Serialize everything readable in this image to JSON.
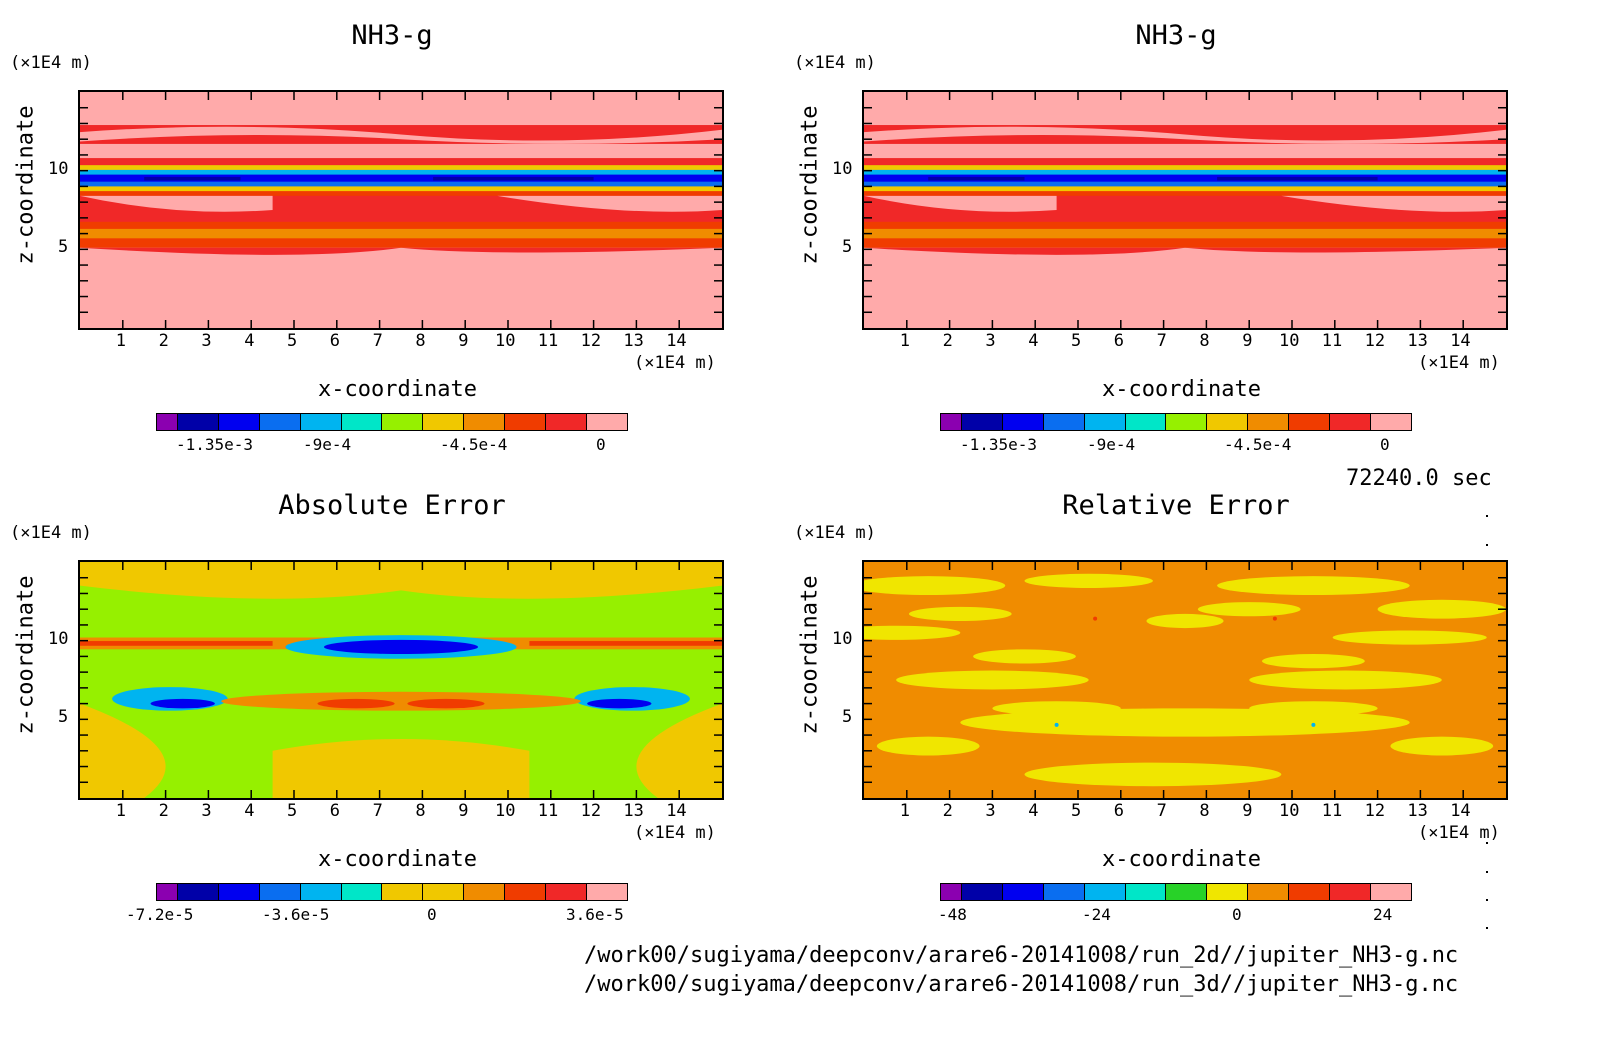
{
  "panels": [
    {
      "title": "NH3-g",
      "z_unit": "(×1E4 m)",
      "x_unit": "(×1E4 m)",
      "xlabel": "x-coordinate",
      "ylabel": "z-coordinate",
      "colorbar_labels": [
        "-1.35e-3",
        "-9e-4",
        "-4.5e-4",
        "0"
      ],
      "colorbar_colors": [
        "#8b00b0",
        "#0000a8",
        "#0000f0",
        "#0a6ef0",
        "#00b4f0",
        "#00e6c8",
        "#96f000",
        "#f0c800",
        "#f08c00",
        "#f03c00",
        "#f02828",
        "#ffaaaa"
      ]
    },
    {
      "title": "NH3-g",
      "z_unit": "(×1E4 m)",
      "x_unit": "(×1E4 m)",
      "xlabel": "x-coordinate",
      "ylabel": "z-coordinate",
      "colorbar_labels": [
        "-1.35e-3",
        "-9e-4",
        "-4.5e-4",
        "0"
      ],
      "colorbar_colors": [
        "#8b00b0",
        "#0000a8",
        "#0000f0",
        "#0a6ef0",
        "#00b4f0",
        "#00e6c8",
        "#96f000",
        "#f0c800",
        "#f08c00",
        "#f03c00",
        "#f02828",
        "#ffaaaa"
      ]
    },
    {
      "title": "Absolute Error",
      "z_unit": "(×1E4 m)",
      "x_unit": "(×1E4 m)",
      "xlabel": "x-coordinate",
      "ylabel": "z-coordinate",
      "colorbar_labels": [
        "-7.2e-5",
        "-3.6e-5",
        "0",
        "3.6e-5"
      ],
      "colorbar_colors": [
        "#8b00b0",
        "#0000a8",
        "#0000f0",
        "#0a6ef0",
        "#00b4f0",
        "#00e6c8",
        "#f0c800",
        "#f0c800",
        "#f08c00",
        "#f03c00",
        "#f02828",
        "#ffaaaa"
      ]
    },
    {
      "title": "Relative Error",
      "z_unit": "(×1E4 m)",
      "x_unit": "(×1E4 m)",
      "xlabel": "x-coordinate",
      "ylabel": "z-coordinate",
      "colorbar_labels": [
        "-48",
        "-24",
        "0",
        "24"
      ],
      "colorbar_colors": [
        "#8b00b0",
        "#0000a8",
        "#0000f0",
        "#0a6ef0",
        "#00b4f0",
        "#00e6c8",
        "#28d228",
        "#f0e600",
        "#f08c00",
        "#f03c00",
        "#f02828",
        "#ffaaaa"
      ]
    }
  ],
  "chart_data": [
    {
      "type": "heatmap",
      "title": "NH3-g",
      "xlabel": "x-coordinate",
      "ylabel": "z-coordinate",
      "xticks": [
        "1",
        "2",
        "3",
        "4",
        "5",
        "6",
        "7",
        "8",
        "9",
        "10",
        "11",
        "12",
        "13",
        "14"
      ],
      "yticks": [
        "5",
        "10"
      ],
      "xlim": [
        0,
        15
      ],
      "ylim": [
        0,
        15
      ],
      "colorbar": [
        "-1.35e-3",
        "-9e-4",
        "-4.5e-4",
        "0"
      ]
    },
    {
      "type": "heatmap",
      "title": "NH3-g",
      "xlabel": "x-coordinate",
      "ylabel": "z-coordinate",
      "xticks": [
        "1",
        "2",
        "3",
        "4",
        "5",
        "6",
        "7",
        "8",
        "9",
        "10",
        "11",
        "12",
        "13",
        "14"
      ],
      "yticks": [
        "5",
        "10"
      ],
      "xlim": [
        0,
        15
      ],
      "ylim": [
        0,
        15
      ],
      "colorbar": [
        "-1.35e-3",
        "-9e-4",
        "-4.5e-4",
        "0"
      ]
    },
    {
      "type": "heatmap",
      "title": "Absolute Error",
      "xlabel": "x-coordinate",
      "ylabel": "z-coordinate",
      "xticks": [
        "1",
        "2",
        "3",
        "4",
        "5",
        "6",
        "7",
        "8",
        "9",
        "10",
        "11",
        "12",
        "13",
        "14"
      ],
      "yticks": [
        "5",
        "10"
      ],
      "xlim": [
        0,
        15
      ],
      "ylim": [
        0,
        15
      ],
      "colorbar": [
        "-7.2e-5",
        "-3.6e-5",
        "0",
        "3.6e-5"
      ]
    },
    {
      "type": "heatmap",
      "title": "Relative Error",
      "xlabel": "x-coordinate",
      "ylabel": "z-coordinate",
      "xticks": [
        "1",
        "2",
        "3",
        "4",
        "5",
        "6",
        "7",
        "8",
        "9",
        "10",
        "11",
        "12",
        "13",
        "14"
      ],
      "yticks": [
        "5",
        "10"
      ],
      "xlim": [
        0,
        15
      ],
      "ylim": [
        0,
        15
      ],
      "colorbar": [
        "-48",
        "-24",
        "0",
        "24"
      ]
    }
  ],
  "ticks": {
    "x": [
      "1",
      "2",
      "3",
      "4",
      "5",
      "6",
      "7",
      "8",
      "9",
      "10",
      "11",
      "12",
      "13",
      "14"
    ],
    "z": [
      "5",
      "10"
    ]
  },
  "timestamp": "72240.0 sec",
  "files": [
    "/work00/sugiyama/deepconv/arare6-20141008/run_2d//jupiter_NH3-g.nc",
    "/work00/sugiyama/deepconv/arare6-20141008/run_3d//jupiter_NH3-g.nc"
  ]
}
